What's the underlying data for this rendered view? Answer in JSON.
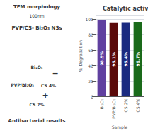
{
  "chart_data": {
    "type": "bar",
    "title": "Catalytic activity",
    "xlabel": "Sample",
    "ylabel": "% Degradation",
    "categories": [
      "Bi₂O₃",
      "PVP/Bi₂O₃",
      "CS 2%",
      "CS 4%"
    ],
    "values": [
      98.5,
      96.1,
      96.4,
      96.7
    ],
    "value_labels": [
      "98.5%",
      "96.1%",
      "96.4%",
      "96.7%"
    ],
    "data_labels": true,
    "colors": [
      "#6040a0",
      "#5a0a0a",
      "#1a2a80",
      "#1a6a1a"
    ],
    "ylim": [
      0,
      105
    ],
    "yticks": [
      0,
      20,
      40,
      60,
      80,
      100
    ],
    "grid": true,
    "annotations": [
      "PVP/CS- Bi₂O₃ NSs",
      "TEM morphology",
      "100nm",
      "Bi₂O₃",
      "PVP/Bi₂O₃",
      "CS 4%",
      "CS 2%",
      "−",
      "+",
      "Antibacterial results"
    ]
  }
}
